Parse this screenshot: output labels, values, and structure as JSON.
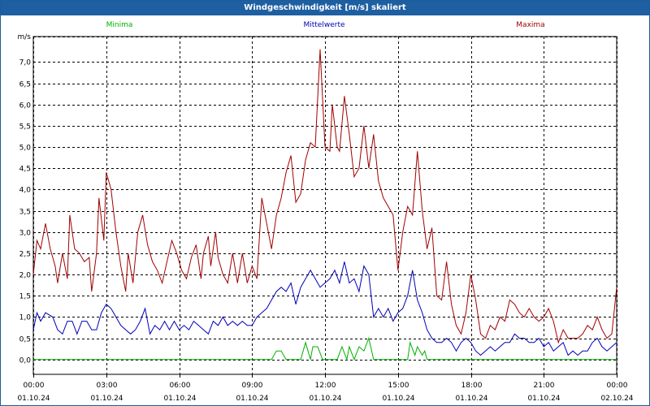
{
  "window": {
    "title": "Windgeschwindigkeit [m/s] skaliert"
  },
  "chart_data": {
    "type": "line",
    "unit": "m/s",
    "ylim": [
      -0.35,
      7.6
    ],
    "xlim": [
      0,
      24
    ],
    "grid": true,
    "legend_position": "top",
    "y_ticks": [
      {
        "v": 0.0,
        "label": "0,0"
      },
      {
        "v": 0.5,
        "label": "0,5"
      },
      {
        "v": 1.0,
        "label": "1,0"
      },
      {
        "v": 1.5,
        "label": "1,5"
      },
      {
        "v": 2.0,
        "label": "2,0"
      },
      {
        "v": 2.5,
        "label": "2,5"
      },
      {
        "v": 3.0,
        "label": "3,0"
      },
      {
        "v": 3.5,
        "label": "3,5"
      },
      {
        "v": 4.0,
        "label": "4,0"
      },
      {
        "v": 4.5,
        "label": "4,5"
      },
      {
        "v": 5.0,
        "label": "5,0"
      },
      {
        "v": 5.5,
        "label": "5,5"
      },
      {
        "v": 6.0,
        "label": "6,0"
      },
      {
        "v": 6.5,
        "label": "6,5"
      },
      {
        "v": 7.0,
        "label": "7,0"
      }
    ],
    "x_ticks": [
      {
        "h": 0,
        "time": "00:00",
        "date": "01.10.24"
      },
      {
        "h": 3,
        "time": "03:00",
        "date": "01.10.24"
      },
      {
        "h": 6,
        "time": "06:00",
        "date": "01.10.24"
      },
      {
        "h": 9,
        "time": "09:00",
        "date": "01.10.24"
      },
      {
        "h": 12,
        "time": "12:00",
        "date": "01.10.24"
      },
      {
        "h": 15,
        "time": "15:00",
        "date": "01.10.24"
      },
      {
        "h": 18,
        "time": "18:00",
        "date": "01.10.24"
      },
      {
        "h": 21,
        "time": "21:00",
        "date": "01.10.24"
      },
      {
        "h": 24,
        "time": "00:00",
        "date": "02.10.24"
      }
    ],
    "series": [
      {
        "name": "Minima",
        "color": "#00b000",
        "points": [
          [
            0,
            0
          ],
          [
            9.8,
            0
          ],
          [
            10.0,
            0.2
          ],
          [
            10.2,
            0.2
          ],
          [
            10.4,
            0
          ],
          [
            11.0,
            0
          ],
          [
            11.2,
            0.4
          ],
          [
            11.4,
            0.0
          ],
          [
            11.5,
            0.3
          ],
          [
            11.7,
            0.3
          ],
          [
            11.9,
            0.0
          ],
          [
            12.5,
            0
          ],
          [
            12.7,
            0.3
          ],
          [
            12.9,
            0
          ],
          [
            13.0,
            0.3
          ],
          [
            13.2,
            0
          ],
          [
            13.4,
            0.3
          ],
          [
            13.6,
            0.2
          ],
          [
            13.8,
            0.5
          ],
          [
            14.0,
            0
          ],
          [
            15.4,
            0
          ],
          [
            15.5,
            0.4
          ],
          [
            15.7,
            0.1
          ],
          [
            15.8,
            0.3
          ],
          [
            16.0,
            0.1
          ],
          [
            16.1,
            0.2
          ],
          [
            16.2,
            0
          ],
          [
            24,
            0
          ]
        ]
      },
      {
        "name": "Mittelwerte",
        "color": "#0000b8",
        "points": [
          [
            0,
            0.7
          ],
          [
            0.15,
            1.1
          ],
          [
            0.3,
            0.9
          ],
          [
            0.5,
            1.1
          ],
          [
            0.8,
            1.0
          ],
          [
            1.0,
            0.7
          ],
          [
            1.2,
            0.6
          ],
          [
            1.4,
            0.9
          ],
          [
            1.6,
            0.9
          ],
          [
            1.8,
            0.6
          ],
          [
            2.0,
            0.9
          ],
          [
            2.2,
            0.9
          ],
          [
            2.4,
            0.7
          ],
          [
            2.6,
            0.7
          ],
          [
            2.8,
            1.1
          ],
          [
            3.0,
            1.3
          ],
          [
            3.2,
            1.2
          ],
          [
            3.4,
            1.0
          ],
          [
            3.6,
            0.8
          ],
          [
            3.8,
            0.7
          ],
          [
            4.0,
            0.6
          ],
          [
            4.2,
            0.7
          ],
          [
            4.4,
            0.9
          ],
          [
            4.6,
            1.2
          ],
          [
            4.8,
            0.6
          ],
          [
            5.0,
            0.8
          ],
          [
            5.2,
            0.7
          ],
          [
            5.4,
            0.9
          ],
          [
            5.6,
            0.7
          ],
          [
            5.8,
            0.9
          ],
          [
            6.0,
            0.7
          ],
          [
            6.2,
            0.8
          ],
          [
            6.4,
            0.7
          ],
          [
            6.6,
            0.9
          ],
          [
            6.8,
            0.8
          ],
          [
            7.0,
            0.7
          ],
          [
            7.2,
            0.6
          ],
          [
            7.4,
            0.9
          ],
          [
            7.6,
            0.8
          ],
          [
            7.8,
            1.0
          ],
          [
            8.0,
            0.8
          ],
          [
            8.2,
            0.9
          ],
          [
            8.4,
            0.8
          ],
          [
            8.6,
            0.9
          ],
          [
            8.8,
            0.8
          ],
          [
            9.0,
            0.8
          ],
          [
            9.2,
            1.0
          ],
          [
            9.4,
            1.1
          ],
          [
            9.6,
            1.2
          ],
          [
            9.8,
            1.4
          ],
          [
            10.0,
            1.6
          ],
          [
            10.2,
            1.7
          ],
          [
            10.4,
            1.6
          ],
          [
            10.6,
            1.8
          ],
          [
            10.8,
            1.3
          ],
          [
            11.0,
            1.7
          ],
          [
            11.2,
            1.9
          ],
          [
            11.4,
            2.1
          ],
          [
            11.6,
            1.9
          ],
          [
            11.8,
            1.7
          ],
          [
            12.0,
            1.8
          ],
          [
            12.2,
            1.9
          ],
          [
            12.4,
            2.1
          ],
          [
            12.6,
            1.8
          ],
          [
            12.8,
            2.3
          ],
          [
            13.0,
            1.8
          ],
          [
            13.2,
            1.9
          ],
          [
            13.4,
            1.6
          ],
          [
            13.6,
            2.2
          ],
          [
            13.8,
            2.0
          ],
          [
            14.0,
            1.0
          ],
          [
            14.2,
            1.2
          ],
          [
            14.4,
            1.0
          ],
          [
            14.6,
            1.2
          ],
          [
            14.8,
            0.9
          ],
          [
            15.0,
            1.1
          ],
          [
            15.2,
            1.2
          ],
          [
            15.4,
            1.5
          ],
          [
            15.6,
            2.1
          ],
          [
            15.8,
            1.4
          ],
          [
            16.0,
            1.1
          ],
          [
            16.2,
            0.7
          ],
          [
            16.4,
            0.5
          ],
          [
            16.6,
            0.4
          ],
          [
            16.8,
            0.4
          ],
          [
            17.0,
            0.5
          ],
          [
            17.2,
            0.4
          ],
          [
            17.4,
            0.2
          ],
          [
            17.6,
            0.4
          ],
          [
            17.8,
            0.5
          ],
          [
            18.0,
            0.4
          ],
          [
            18.2,
            0.2
          ],
          [
            18.4,
            0.1
          ],
          [
            18.6,
            0.2
          ],
          [
            18.8,
            0.3
          ],
          [
            19.0,
            0.2
          ],
          [
            19.2,
            0.3
          ],
          [
            19.4,
            0.4
          ],
          [
            19.6,
            0.4
          ],
          [
            19.8,
            0.6
          ],
          [
            20.0,
            0.5
          ],
          [
            20.2,
            0.5
          ],
          [
            20.4,
            0.4
          ],
          [
            20.6,
            0.4
          ],
          [
            20.8,
            0.5
          ],
          [
            21.0,
            0.3
          ],
          [
            21.2,
            0.4
          ],
          [
            21.4,
            0.2
          ],
          [
            21.6,
            0.3
          ],
          [
            21.8,
            0.4
          ],
          [
            22.0,
            0.1
          ],
          [
            22.2,
            0.2
          ],
          [
            22.4,
            0.1
          ],
          [
            22.6,
            0.2
          ],
          [
            22.8,
            0.2
          ],
          [
            23.0,
            0.4
          ],
          [
            23.2,
            0.5
          ],
          [
            23.4,
            0.3
          ],
          [
            23.6,
            0.2
          ],
          [
            23.8,
            0.3
          ],
          [
            24.0,
            0.4
          ]
        ]
      },
      {
        "name": "Maxima",
        "color": "#a00000",
        "points": [
          [
            0,
            2.0
          ],
          [
            0.15,
            2.8
          ],
          [
            0.3,
            2.6
          ],
          [
            0.5,
            3.2
          ],
          [
            0.7,
            2.6
          ],
          [
            0.9,
            2.2
          ],
          [
            1.0,
            1.8
          ],
          [
            1.2,
            2.5
          ],
          [
            1.4,
            1.9
          ],
          [
            1.5,
            3.4
          ],
          [
            1.7,
            2.6
          ],
          [
            1.9,
            2.5
          ],
          [
            2.1,
            2.3
          ],
          [
            2.3,
            2.4
          ],
          [
            2.4,
            1.6
          ],
          [
            2.6,
            2.5
          ],
          [
            2.7,
            3.8
          ],
          [
            2.9,
            2.8
          ],
          [
            3.0,
            4.4
          ],
          [
            3.2,
            4.0
          ],
          [
            3.4,
            3.0
          ],
          [
            3.6,
            2.2
          ],
          [
            3.8,
            1.6
          ],
          [
            3.9,
            2.5
          ],
          [
            4.1,
            1.8
          ],
          [
            4.3,
            3.0
          ],
          [
            4.5,
            3.4
          ],
          [
            4.7,
            2.7
          ],
          [
            4.9,
            2.3
          ],
          [
            5.1,
            2.1
          ],
          [
            5.3,
            1.8
          ],
          [
            5.5,
            2.3
          ],
          [
            5.7,
            2.8
          ],
          [
            5.9,
            2.5
          ],
          [
            6.1,
            2.1
          ],
          [
            6.3,
            1.9
          ],
          [
            6.5,
            2.4
          ],
          [
            6.7,
            2.7
          ],
          [
            6.9,
            1.9
          ],
          [
            7.0,
            2.5
          ],
          [
            7.2,
            2.9
          ],
          [
            7.3,
            2.2
          ],
          [
            7.5,
            3.0
          ],
          [
            7.6,
            2.4
          ],
          [
            7.8,
            2.0
          ],
          [
            8.0,
            1.8
          ],
          [
            8.2,
            2.5
          ],
          [
            8.4,
            1.8
          ],
          [
            8.6,
            2.5
          ],
          [
            8.8,
            1.8
          ],
          [
            9.0,
            2.2
          ],
          [
            9.2,
            1.9
          ],
          [
            9.4,
            3.8
          ],
          [
            9.6,
            3.2
          ],
          [
            9.8,
            2.6
          ],
          [
            10.0,
            3.4
          ],
          [
            10.2,
            3.8
          ],
          [
            10.4,
            4.4
          ],
          [
            10.6,
            4.8
          ],
          [
            10.8,
            3.7
          ],
          [
            11.0,
            3.9
          ],
          [
            11.2,
            4.7
          ],
          [
            11.4,
            5.1
          ],
          [
            11.6,
            5.0
          ],
          [
            11.8,
            7.3
          ],
          [
            12.0,
            5.0
          ],
          [
            12.2,
            4.9
          ],
          [
            12.3,
            6.0
          ],
          [
            12.5,
            5.0
          ],
          [
            12.6,
            4.9
          ],
          [
            12.8,
            6.2
          ],
          [
            13.0,
            5.3
          ],
          [
            13.2,
            4.3
          ],
          [
            13.4,
            4.5
          ],
          [
            13.6,
            5.5
          ],
          [
            13.8,
            4.5
          ],
          [
            14.0,
            5.3
          ],
          [
            14.2,
            4.2
          ],
          [
            14.4,
            3.8
          ],
          [
            14.6,
            3.6
          ],
          [
            14.8,
            3.4
          ],
          [
            15.0,
            2.1
          ],
          [
            15.2,
            3.0
          ],
          [
            15.4,
            3.6
          ],
          [
            15.6,
            3.4
          ],
          [
            15.8,
            4.9
          ],
          [
            16.0,
            3.5
          ],
          [
            16.2,
            2.6
          ],
          [
            16.4,
            3.1
          ],
          [
            16.6,
            1.5
          ],
          [
            16.8,
            1.4
          ],
          [
            17.0,
            2.3
          ],
          [
            17.2,
            1.3
          ],
          [
            17.4,
            0.8
          ],
          [
            17.6,
            0.6
          ],
          [
            17.8,
            1.1
          ],
          [
            18.0,
            2.0
          ],
          [
            18.2,
            1.4
          ],
          [
            18.4,
            0.6
          ],
          [
            18.6,
            0.5
          ],
          [
            18.8,
            0.8
          ],
          [
            19.0,
            0.7
          ],
          [
            19.2,
            1.0
          ],
          [
            19.4,
            0.9
          ],
          [
            19.6,
            1.4
          ],
          [
            19.8,
            1.3
          ],
          [
            20.0,
            1.1
          ],
          [
            20.2,
            1.0
          ],
          [
            20.4,
            1.2
          ],
          [
            20.6,
            1.0
          ],
          [
            20.8,
            0.9
          ],
          [
            21.0,
            1.0
          ],
          [
            21.2,
            1.2
          ],
          [
            21.4,
            0.9
          ],
          [
            21.6,
            0.4
          ],
          [
            21.8,
            0.7
          ],
          [
            22.0,
            0.5
          ],
          [
            22.2,
            0.5
          ],
          [
            22.4,
            0.5
          ],
          [
            22.6,
            0.6
          ],
          [
            22.8,
            0.8
          ],
          [
            23.0,
            0.7
          ],
          [
            23.2,
            1.0
          ],
          [
            23.4,
            0.7
          ],
          [
            23.6,
            0.5
          ],
          [
            23.8,
            0.6
          ],
          [
            24.0,
            1.7
          ]
        ]
      }
    ]
  }
}
